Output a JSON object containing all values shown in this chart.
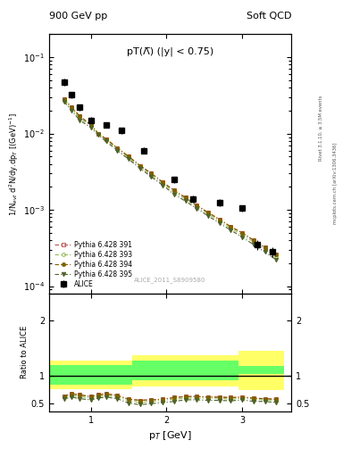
{
  "title_left": "900 GeV pp",
  "title_right": "Soft QCD",
  "right_label_top": "Rivet 3.1.10, ≥ 3.5M events",
  "right_label_bot": "mcplots.cern.ch [arXiv:1306.3436]",
  "plot_title": "pT(Λ̅) (|y| < 0.75)",
  "watermark": "ALICE_2011_S8909580",
  "ylabel_main": "1/N$_{evt}$ d$^2$N/dy.dp$_T$ [(GeV)$^{-1}$]",
  "ylabel_ratio": "Ratio to ALICE",
  "xlabel": "p$_T$ [GeV]",
  "alice_x": [
    0.65,
    0.75,
    0.85,
    1.0,
    1.2,
    1.4,
    1.7,
    2.1,
    2.35,
    2.7,
    3.0,
    3.2,
    3.4
  ],
  "alice_y": [
    0.047,
    0.032,
    0.022,
    0.015,
    0.013,
    0.011,
    0.006,
    0.0025,
    0.0014,
    0.00125,
    0.00105,
    0.00035,
    0.00028
  ],
  "alice_yerr": [
    0.005,
    0.003,
    0.002,
    0.0015,
    0.0012,
    0.001,
    0.0006,
    0.00025,
    0.00015,
    0.00013,
    0.0001,
    5e-05,
    4e-05
  ],
  "mc_x": [
    0.65,
    0.75,
    0.85,
    1.0,
    1.1,
    1.2,
    1.35,
    1.5,
    1.65,
    1.8,
    1.95,
    2.1,
    2.25,
    2.4,
    2.55,
    2.7,
    2.85,
    3.0,
    3.15,
    3.3,
    3.45
  ],
  "py391_y": [
    0.028,
    0.022,
    0.017,
    0.013,
    0.01,
    0.0085,
    0.0065,
    0.005,
    0.0038,
    0.003,
    0.0023,
    0.0018,
    0.00145,
    0.00115,
    0.00092,
    0.00075,
    0.0006,
    0.0005,
    0.0004,
    0.00032,
    0.00026
  ],
  "py393_y": [
    0.027,
    0.021,
    0.016,
    0.0125,
    0.0098,
    0.0082,
    0.0063,
    0.0048,
    0.0037,
    0.0028,
    0.0022,
    0.0017,
    0.00138,
    0.0011,
    0.00088,
    0.00071,
    0.00057,
    0.00047,
    0.00038,
    0.0003,
    0.00025
  ],
  "py394_y": [
    0.028,
    0.022,
    0.017,
    0.013,
    0.01,
    0.0085,
    0.0065,
    0.005,
    0.0038,
    0.003,
    0.0023,
    0.0018,
    0.00145,
    0.00115,
    0.00092,
    0.00075,
    0.0006,
    0.0005,
    0.0004,
    0.00032,
    0.00026
  ],
  "py395_y": [
    0.026,
    0.02,
    0.015,
    0.012,
    0.0095,
    0.0079,
    0.006,
    0.0046,
    0.0035,
    0.0027,
    0.0021,
    0.0016,
    0.0013,
    0.00104,
    0.00083,
    0.00067,
    0.00054,
    0.00044,
    0.00035,
    0.00028,
    0.00022
  ],
  "ratio391_y": [
    0.63,
    0.67,
    0.65,
    0.62,
    0.65,
    0.67,
    0.64,
    0.57,
    0.55,
    0.56,
    0.57,
    0.6,
    0.62,
    0.62,
    0.61,
    0.61,
    0.6,
    0.61,
    0.59,
    0.58,
    0.57
  ],
  "ratio393_y": [
    0.61,
    0.64,
    0.62,
    0.59,
    0.62,
    0.64,
    0.61,
    0.54,
    0.51,
    0.53,
    0.55,
    0.57,
    0.59,
    0.59,
    0.59,
    0.59,
    0.57,
    0.59,
    0.57,
    0.56,
    0.55
  ],
  "ratio394_y": [
    0.63,
    0.67,
    0.65,
    0.62,
    0.65,
    0.67,
    0.64,
    0.57,
    0.55,
    0.56,
    0.57,
    0.6,
    0.62,
    0.62,
    0.61,
    0.61,
    0.6,
    0.61,
    0.59,
    0.58,
    0.57
  ],
  "ratio395_y": [
    0.58,
    0.61,
    0.58,
    0.56,
    0.59,
    0.61,
    0.58,
    0.5,
    0.47,
    0.49,
    0.51,
    0.53,
    0.56,
    0.56,
    0.55,
    0.55,
    0.54,
    0.56,
    0.53,
    0.53,
    0.51
  ],
  "band_edges": [
    0.45,
    1.25,
    1.55,
    2.55,
    2.95,
    3.55
  ],
  "band_green_low": [
    0.84,
    0.84,
    0.91,
    0.91,
    1.03,
    1.03
  ],
  "band_green_high": [
    1.19,
    1.19,
    1.27,
    1.27,
    1.17,
    1.17
  ],
  "band_yellow_low": [
    0.75,
    0.75,
    0.81,
    0.81,
    0.73,
    0.73
  ],
  "band_yellow_high": [
    1.27,
    1.27,
    1.37,
    1.37,
    1.45,
    1.45
  ],
  "color_391": "#c0504d",
  "color_393": "#9bbb59",
  "color_394": "#7f6000",
  "color_395": "#4f6228",
  "ylim_main": [
    8e-05,
    0.2
  ],
  "ylim_ratio": [
    0.35,
    2.5
  ],
  "xlim": [
    0.45,
    3.65
  ]
}
